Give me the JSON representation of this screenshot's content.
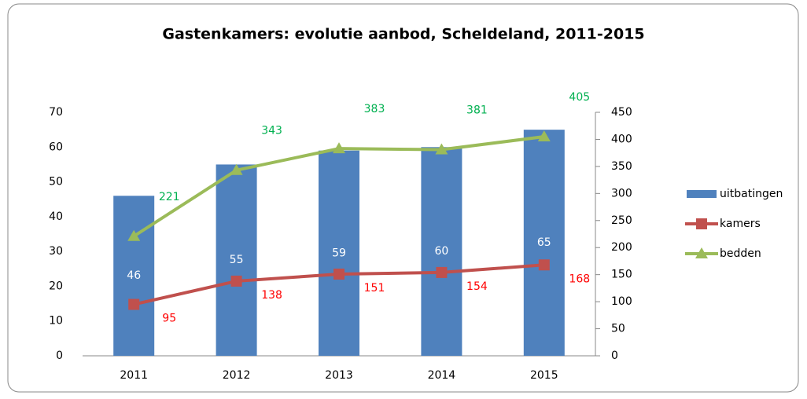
{
  "chart_data": {
    "type": "bar",
    "title": "Gastenkamers: evolutie aanbod, Scheldeland, 2011-2015",
    "categories": [
      "2011",
      "2012",
      "2013",
      "2014",
      "2015"
    ],
    "series": [
      {
        "name": "uitbatingen",
        "type": "bar",
        "color": "#4f81bd",
        "label_color": "#ffffff",
        "axis": "y",
        "values": [
          46,
          55,
          59,
          60,
          65
        ]
      },
      {
        "name": "kamers",
        "type": "line",
        "color": "#c0504d",
        "label_color": "#ff0000",
        "axis": "y2",
        "values": [
          95,
          138,
          151,
          154,
          168
        ]
      },
      {
        "name": "bedden",
        "type": "line",
        "color": "#9bbb59",
        "label_color": "#00b050",
        "axis": "y2",
        "values": [
          221,
          343,
          383,
          381,
          405
        ]
      }
    ],
    "ylim": [
      0,
      70
    ],
    "yticks": [
      0,
      10,
      20,
      30,
      40,
      50,
      60,
      70
    ],
    "y2lim": [
      0,
      450
    ],
    "y2ticks": [
      0,
      50,
      100,
      150,
      200,
      250,
      300,
      350,
      400,
      450
    ],
    "legend": "right"
  }
}
